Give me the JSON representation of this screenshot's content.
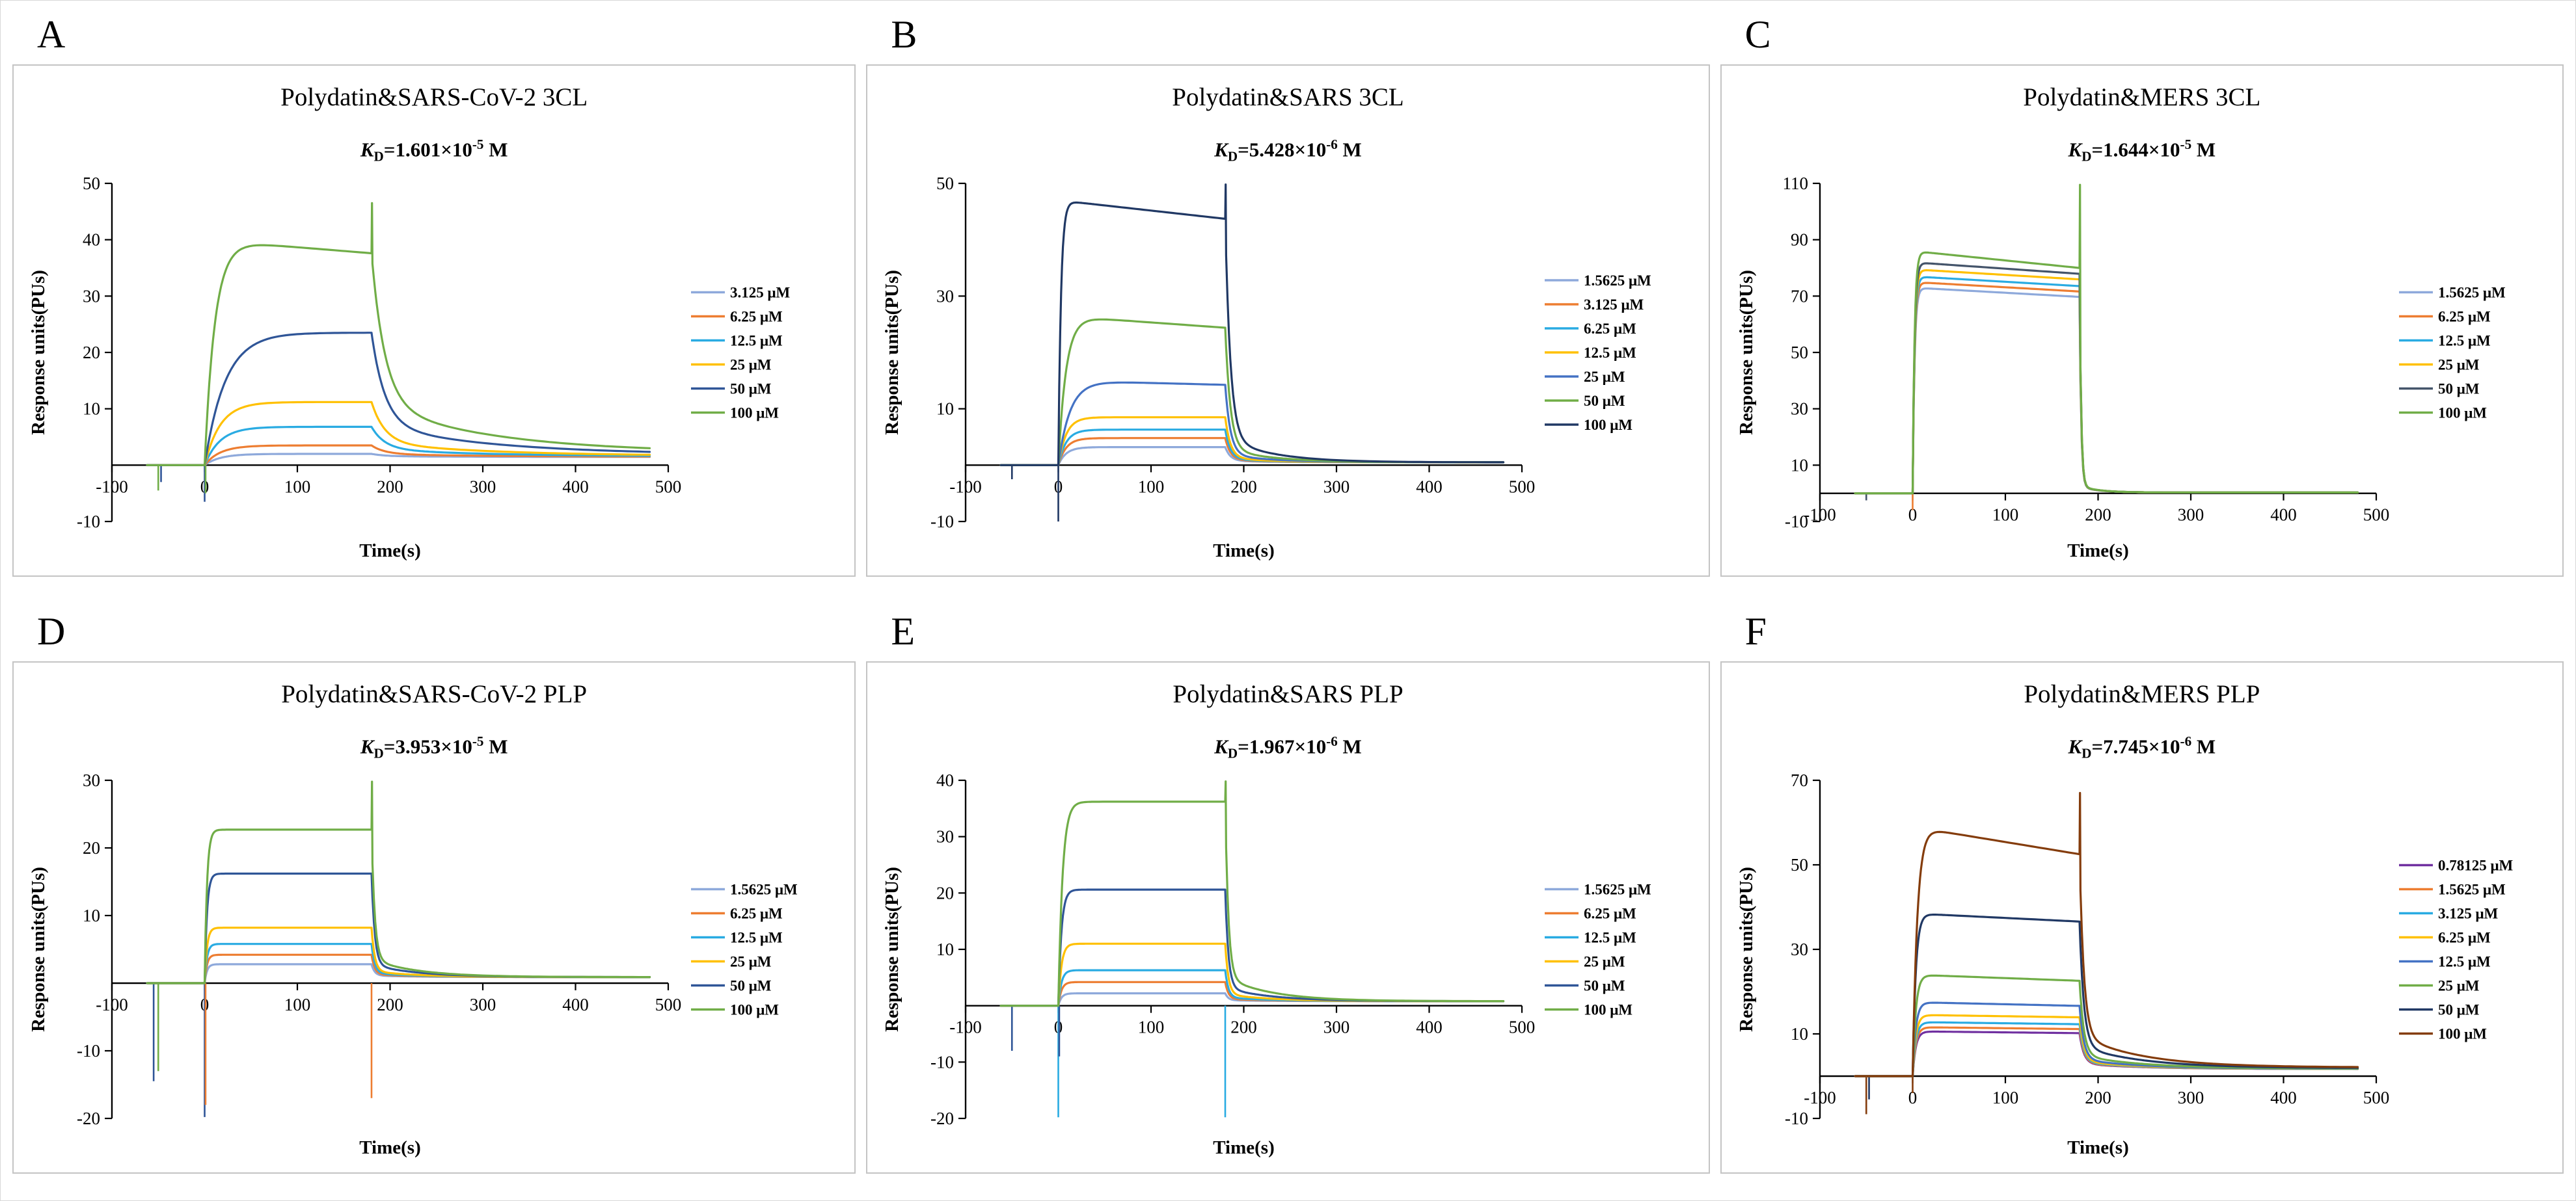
{
  "figure": {
    "background": "#ffffff",
    "panel_border_color": "#c4c4c4"
  },
  "chart_data": [
    {
      "type": "line",
      "letter": "A",
      "title": "Polydatin&SARS-CoV-2 3CL",
      "kd": {
        "symbol": "K",
        "sub": "D",
        "value": "=1.601×10",
        "exp": "-5",
        "unit": " M"
      },
      "xlabel": "Time(s)",
      "ylabel": "Response units(PUs)",
      "xlim": [
        -100,
        500
      ],
      "xticks": [
        -100,
        0,
        100,
        200,
        300,
        400,
        500
      ],
      "ylim": [
        -10,
        50
      ],
      "yticks": [
        -10,
        10,
        20,
        30,
        40,
        50
      ],
      "model": {
        "t_start": -62,
        "t_end": 480,
        "t_on": 0,
        "t_off": 180,
        "assoc_k": 0.06,
        "dissoc": {
          "w": 0.75,
          "k1": 0.07,
          "k2": 0.008
        },
        "end": 1.4,
        "end_scale": 0.02
      },
      "series": [
        {
          "label": "3.125 μM",
          "color": "#8EA9DB",
          "plateau": 2.0,
          "k": 0.06
        },
        {
          "label": "6.25 μM",
          "color": "#ED7D31",
          "plateau": 3.5,
          "k": 0.06
        },
        {
          "label": "12.5 μM",
          "color": "#29ABE2",
          "plateau": 6.8,
          "k": 0.06
        },
        {
          "label": "25 μM",
          "color": "#FFC000",
          "plateau": 11.2,
          "k": 0.06
        },
        {
          "label": "50 μM",
          "color": "#2F5597",
          "plateau": 23.5,
          "k": 0.045
        },
        {
          "label": "100 μM",
          "color": "#70AD47",
          "plateau": 40.0,
          "k": 0.09,
          "decline": 0.06,
          "spike180": 46.5
        }
      ],
      "glitches": [
        {
          "t": -50,
          "y": -4.5,
          "color": "#70AD47"
        },
        {
          "t": -47,
          "y": -3.0,
          "color": "#2F5597"
        },
        {
          "t": 0,
          "y": -6.5,
          "color": "#2F5597"
        },
        {
          "t": 1,
          "y": -5.0,
          "color": "#70AD47"
        }
      ]
    },
    {
      "type": "line",
      "letter": "B",
      "title": "Polydatin&SARS 3CL",
      "kd": {
        "symbol": "K",
        "sub": "D",
        "value": "=5.428×10",
        "exp": "-6",
        "unit": " M"
      },
      "xlabel": "Time(s)",
      "ylabel": "Response units(PUs)",
      "xlim": [
        -100,
        500
      ],
      "xticks": [
        -100,
        0,
        100,
        200,
        300,
        400,
        500
      ],
      "ylim": [
        -10,
        50
      ],
      "yticks": [
        -10,
        10,
        30,
        50
      ],
      "model": {
        "t_start": -62,
        "t_end": 480,
        "t_on": 0,
        "t_off": 180,
        "assoc_k": 0.12,
        "dissoc": {
          "w": 0.9,
          "k1": 0.18,
          "k2": 0.02
        },
        "end": 0.5,
        "end_scale": 0
      },
      "series": [
        {
          "label": "1.5625 μM",
          "color": "#8EA9DB",
          "plateau": 3.2
        },
        {
          "label": "3.125 μM",
          "color": "#ED7D31",
          "plateau": 4.8
        },
        {
          "label": "6.25 μM",
          "color": "#29ABE2",
          "plateau": 6.3
        },
        {
          "label": "12.5 μM",
          "color": "#FFC000",
          "plateau": 8.5
        },
        {
          "label": "25 μM",
          "color": "#4472C4",
          "plateau": 15.0,
          "k": 0.08,
          "decline": 0.05
        },
        {
          "label": "50 μM",
          "color": "#70AD47",
          "plateau": 26.5,
          "decline": 0.08
        },
        {
          "label": "100 μM",
          "color": "#203864",
          "plateau": 47.0,
          "k": 0.35,
          "decline": 0.07,
          "spike180": 49.8
        }
      ],
      "glitches": [
        {
          "t": -50,
          "y": -2.5,
          "color": "#203864"
        },
        {
          "t": 0,
          "y": -10.0,
          "color": "#203864"
        }
      ]
    },
    {
      "type": "line",
      "letter": "C",
      "title": "Polydatin&MERS 3CL",
      "kd": {
        "symbol": "K",
        "sub": "D",
        "value": "=1.644×10",
        "exp": "-5",
        "unit": " M"
      },
      "xlabel": "Time(s)",
      "ylabel": "Response units(PUs)",
      "xlim": [
        -100,
        500
      ],
      "xticks": [
        -100,
        0,
        100,
        200,
        300,
        400,
        500
      ],
      "ylim": [
        -10,
        110
      ],
      "yticks": [
        -10,
        10,
        30,
        50,
        70,
        90,
        110
      ],
      "model": {
        "t_start": -62,
        "t_end": 480,
        "t_on": 0,
        "t_off": 180,
        "assoc_k": 0.5,
        "dissoc": {
          "w": 0.97,
          "k1": 0.6,
          "k2": 0.05
        },
        "end": 0.3,
        "end_scale": 0
      },
      "series": [
        {
          "label": "1.5625 μM",
          "color": "#8EA9DB",
          "plateau": 73.0,
          "decline": 0.045
        },
        {
          "label": "6.25 μM",
          "color": "#ED7D31",
          "plateau": 75.0,
          "decline": 0.045
        },
        {
          "label": "12.5 μM",
          "color": "#29ABE2",
          "plateau": 77.0,
          "decline": 0.045
        },
        {
          "label": "25 μM",
          "color": "#FFC000",
          "plateau": 79.5,
          "decline": 0.045
        },
        {
          "label": "50 μM",
          "color": "#44546A",
          "plateau": 82.0,
          "decline": 0.05
        },
        {
          "label": "100 μM",
          "color": "#70AD47",
          "plateau": 86.0,
          "decline": 0.07,
          "spike180": 109.5
        }
      ],
      "glitches": [
        {
          "t": -50,
          "y": -2.5,
          "color": "#44546A"
        },
        {
          "t": 0,
          "y": -6.0,
          "color": "#ED7D31"
        }
      ]
    },
    {
      "type": "line",
      "letter": "D",
      "title": "Polydatin&SARS-CoV-2 PLP",
      "kd": {
        "symbol": "K",
        "sub": "D",
        "value": "=3.953×10",
        "exp": "-5",
        "unit": " M"
      },
      "xlabel": "Time(s)",
      "ylabel": "Response units(PUs)",
      "xlim": [
        -100,
        500
      ],
      "xticks": [
        -100,
        0,
        100,
        200,
        300,
        400,
        500
      ],
      "ylim": [
        -20,
        30
      ],
      "yticks": [
        -20,
        -10,
        10,
        20,
        30
      ],
      "model": {
        "t_start": -62,
        "t_end": 480,
        "t_on": 0,
        "t_off": 180,
        "assoc_k": 0.4,
        "dissoc": {
          "w": 0.88,
          "k1": 0.3,
          "k2": 0.02
        },
        "end": 0.9,
        "end_scale": 0
      },
      "series": [
        {
          "label": "1.5625 μM",
          "color": "#8EA9DB",
          "plateau": 2.8
        },
        {
          "label": "6.25 μM",
          "color": "#ED7D31",
          "plateau": 4.2
        },
        {
          "label": "12.5 μM",
          "color": "#29ABE2",
          "plateau": 5.8
        },
        {
          "label": "25 μM",
          "color": "#FFC000",
          "plateau": 8.2
        },
        {
          "label": "50 μM",
          "color": "#2F5597",
          "plateau": 16.2
        },
        {
          "label": "100 μM",
          "color": "#70AD47",
          "plateau": 22.7,
          "spike180": 29.8
        }
      ],
      "glitches": [
        {
          "t": -55,
          "y": -14.5,
          "color": "#2F5597"
        },
        {
          "t": -50,
          "y": -13.0,
          "color": "#70AD47"
        },
        {
          "t": 0,
          "y": -19.8,
          "color": "#2F5597"
        },
        {
          "t": 1,
          "y": -18.0,
          "color": "#ED7D31"
        },
        {
          "t": 180,
          "y": -17.0,
          "color": "#ED7D31"
        }
      ]
    },
    {
      "type": "line",
      "letter": "E",
      "title": "Polydatin&SARS PLP",
      "kd": {
        "symbol": "K",
        "sub": "D",
        "value": "=1.967×10",
        "exp": "-6",
        "unit": " M"
      },
      "xlabel": "Time(s)",
      "ylabel": "Response units(PUs)",
      "xlim": [
        -100,
        500
      ],
      "xticks": [
        -100,
        0,
        100,
        200,
        300,
        400,
        500
      ],
      "ylim": [
        -20,
        40
      ],
      "yticks": [
        -20,
        -10,
        10,
        20,
        30,
        40
      ],
      "model": {
        "t_start": -62,
        "t_end": 480,
        "t_on": 0,
        "t_off": 180,
        "assoc_k": 0.3,
        "dissoc": {
          "w": 0.88,
          "k1": 0.3,
          "k2": 0.02
        },
        "end": 0.8,
        "end_scale": 0
      },
      "series": [
        {
          "label": "1.5625 μM",
          "color": "#8EA9DB",
          "plateau": 2.2
        },
        {
          "label": "6.25 μM",
          "color": "#ED7D31",
          "plateau": 4.2
        },
        {
          "label": "12.5 μM",
          "color": "#29ABE2",
          "plateau": 6.3
        },
        {
          "label": "25 μM",
          "color": "#FFC000",
          "plateau": 11.0
        },
        {
          "label": "50 μM",
          "color": "#2F5597",
          "plateau": 20.6
        },
        {
          "label": "100 μM",
          "color": "#70AD47",
          "plateau": 36.2,
          "k": 0.22,
          "spike180": 39.8
        }
      ],
      "glitches": [
        {
          "t": -50,
          "y": -8.0,
          "color": "#2F5597"
        },
        {
          "t": 0,
          "y": -19.8,
          "color": "#29ABE2"
        },
        {
          "t": 1,
          "y": -9.0,
          "color": "#2F5597"
        },
        {
          "t": 180,
          "y": -19.8,
          "color": "#29ABE2"
        }
      ]
    },
    {
      "type": "line",
      "letter": "F",
      "title": "Polydatin&MERS PLP",
      "kd": {
        "symbol": "K",
        "sub": "D",
        "value": "=7.745×10",
        "exp": "-6",
        "unit": " M"
      },
      "xlabel": "Time(s)",
      "ylabel": "Response units(PUs)",
      "xlim": [
        -100,
        500
      ],
      "xticks": [
        -100,
        0,
        100,
        200,
        300,
        400,
        500
      ],
      "ylim": [
        -10,
        70
      ],
      "yticks": [
        -10,
        10,
        30,
        50,
        70
      ],
      "model": {
        "t_start": -62,
        "t_end": 480,
        "t_on": 0,
        "t_off": 180,
        "assoc_k": 0.3,
        "dissoc": {
          "w": 0.85,
          "k1": 0.22,
          "k2": 0.015
        },
        "end": 1.6,
        "end_scale": 0.008
      },
      "series": [
        {
          "label": "0.78125 μM",
          "color": "#7030A0",
          "plateau": 10.6,
          "decline": 0.04
        },
        {
          "label": "1.5625 μM",
          "color": "#ED7D31",
          "plateau": 11.6,
          "decline": 0.04
        },
        {
          "label": "3.125 μM",
          "color": "#29ABE2",
          "plateau": 12.8,
          "decline": 0.04
        },
        {
          "label": "6.25 μM",
          "color": "#FFC000",
          "plateau": 14.5,
          "decline": 0.04
        },
        {
          "label": "12.5 μM",
          "color": "#4472C4",
          "plateau": 17.5,
          "decline": 0.05
        },
        {
          "label": "25 μM",
          "color": "#70AD47",
          "plateau": 24.0,
          "decline": 0.06
        },
        {
          "label": "50 μM",
          "color": "#203864",
          "plateau": 38.5,
          "decline": 0.05
        },
        {
          "label": "100 μM",
          "color": "#843C0C",
          "plateau": 59.0,
          "k": 0.2,
          "decline": 0.11,
          "spike180": 67.0
        }
      ],
      "glitches": [
        {
          "t": -50,
          "y": -9.0,
          "color": "#843C0C"
        },
        {
          "t": -47,
          "y": -5.5,
          "color": "#203864"
        },
        {
          "t": 0,
          "y": -4.0,
          "color": "#843C0C"
        }
      ]
    }
  ]
}
